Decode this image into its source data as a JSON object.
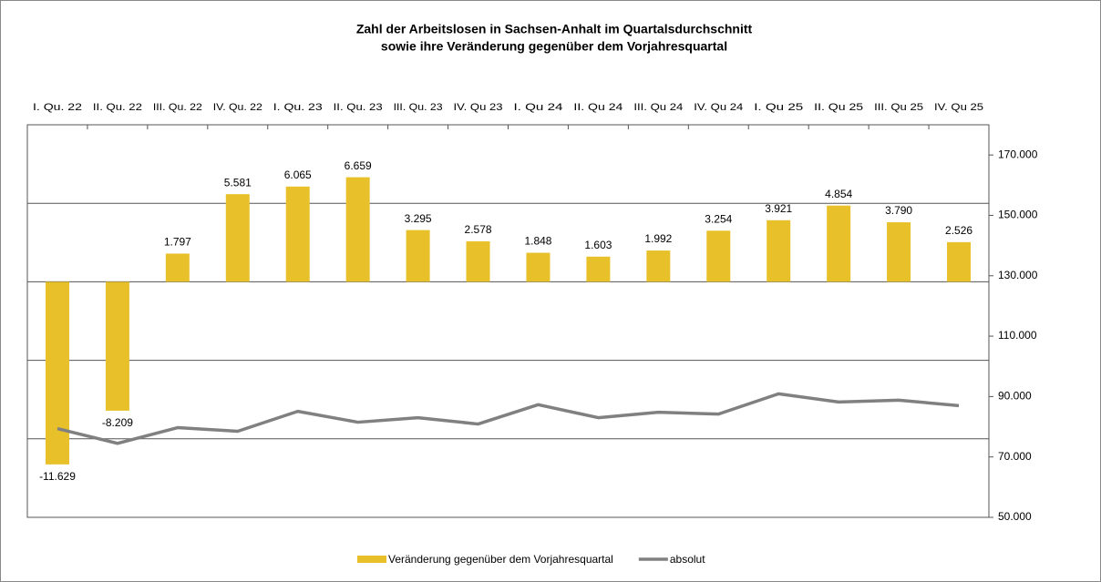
{
  "chart_data": {
    "type": "bar",
    "title": "Zahl der Arbeitslosen in Sachsen-Anhalt im Quartalsdurchschnitt",
    "subtitle": "sowie ihre Veränderung gegenüber dem Vorjahresquartal",
    "categories": [
      "I. Qu. 22",
      "II. Qu. 22",
      "III. Qu. 22",
      "IV. Qu. 22",
      "I. Qu. 23",
      "II. Qu. 23",
      "III. Qu. 23",
      "IV. Qu 23",
      "I. Qu 24",
      "II. Qu 24",
      "III. Qu 24",
      "IV. Qu 24",
      "I. Qu 25",
      "II. Qu 25",
      "III. Qu 25",
      "IV. Qu 25"
    ],
    "series": [
      {
        "name": "Veränderung gegenüber dem Vorjahresquartal",
        "color": "#e8c12a",
        "type": "bar",
        "values": [
          -11629,
          -8209,
          1797,
          5581,
          6065,
          6659,
          3295,
          2578,
          1848,
          1603,
          1992,
          3254,
          3921,
          4854,
          3790,
          2526
        ],
        "value_labels": [
          "-11.629",
          "-8.209",
          "1.797",
          "5.581",
          "6.065",
          "6.659",
          "3.295",
          "2.578",
          "1.848",
          "1.603",
          "1.992",
          "3.254",
          "3.921",
          "4.854",
          "3.790",
          "2.526"
        ]
      },
      {
        "name": "absolut",
        "color": "#808080",
        "type": "line",
        "axis": "y2",
        "values": [
          79400,
          74500,
          79700,
          78500,
          85100,
          81500,
          83000,
          80900,
          87300,
          83000,
          84800,
          84200,
          90900,
          88200,
          88800,
          87000
        ]
      }
    ],
    "ylim": [
      -15000,
      10000
    ],
    "yticks": [
      -15000,
      -10000,
      -5000,
      0,
      5000,
      10000
    ],
    "y2lim": [
      50000,
      180000
    ],
    "y2ticks": [
      {
        "value": 50000,
        "label": "50.000"
      },
      {
        "value": 70000,
        "label": "70.000"
      },
      {
        "value": 90000,
        "label": "90.000"
      },
      {
        "value": 110000,
        "label": "110.000"
      },
      {
        "value": 130000,
        "label": "130.000"
      },
      {
        "value": 150000,
        "label": "150.000"
      },
      {
        "value": 170000,
        "label": "170.000"
      }
    ],
    "grid": true,
    "legend": "bottom"
  }
}
